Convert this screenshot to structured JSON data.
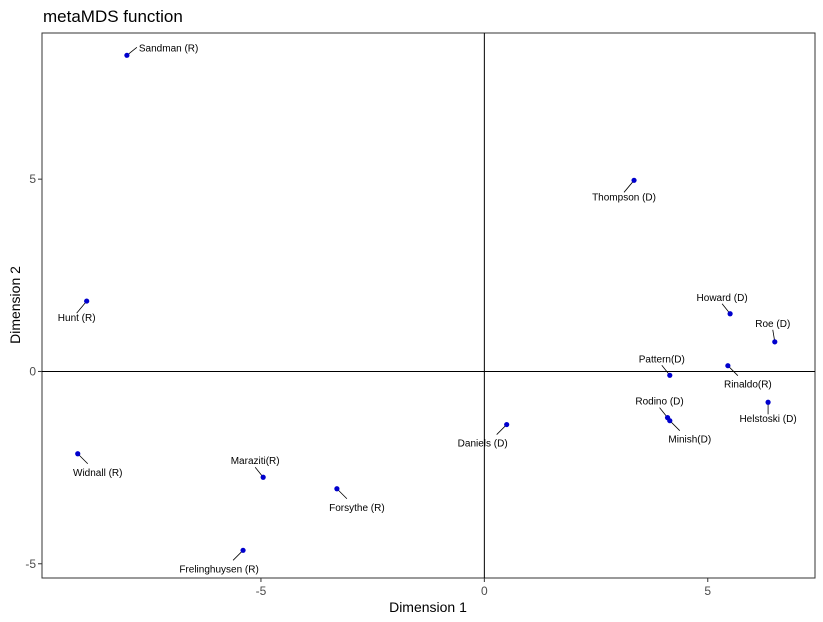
{
  "chart_data": {
    "type": "scatter",
    "title": "metaMDS function",
    "xlabel": "Dimension 1",
    "ylabel": "Dimension 2",
    "xlim": [
      -9.9,
      7.4
    ],
    "ylim": [
      -5.37,
      8.8
    ],
    "xticks": [
      -5,
      0,
      5
    ],
    "yticks": [
      -5,
      0,
      5
    ],
    "reference_lines": {
      "x": 0,
      "y": 0
    },
    "grid": false,
    "point_color": "#0000cd",
    "points": [
      {
        "label": "Sandman (R)",
        "x": -8.0,
        "y": 8.22,
        "label_pos": "right"
      },
      {
        "label": "Thompson (D)",
        "x": 3.35,
        "y": 4.97,
        "label_pos": "left-below"
      },
      {
        "label": "Hunt (R)",
        "x": -8.9,
        "y": 1.83,
        "label_pos": "left-below"
      },
      {
        "label": "Howard (D)",
        "x": 5.5,
        "y": 1.5,
        "label_pos": "above-left"
      },
      {
        "label": "Roe (D)",
        "x": 6.5,
        "y": 0.77,
        "label_pos": "above"
      },
      {
        "label": "Pattern(D)",
        "x": 4.15,
        "y": -0.1,
        "label_pos": "above-left"
      },
      {
        "label": "Rinaldo(R)",
        "x": 5.45,
        "y": 0.15,
        "label_pos": "below-right"
      },
      {
        "label": "Rodino (D)",
        "x": 4.1,
        "y": -1.2,
        "label_pos": "above-left"
      },
      {
        "label": "Minish(D)",
        "x": 4.15,
        "y": -1.28,
        "label_pos": "below-right"
      },
      {
        "label": "Helstoski (D)",
        "x": 6.35,
        "y": -0.8,
        "label_pos": "below"
      },
      {
        "label": "Daniels (D)",
        "x": 0.5,
        "y": -1.38,
        "label_pos": "below-left"
      },
      {
        "label": "Widnall (R)",
        "x": -9.1,
        "y": -2.14,
        "label_pos": "below-right"
      },
      {
        "label": "Maraziti(R)",
        "x": -4.95,
        "y": -2.75,
        "label_pos": "above-left"
      },
      {
        "label": "Forsythe (R)",
        "x": -3.3,
        "y": -3.05,
        "label_pos": "below-right"
      },
      {
        "label": "Frelinghuysen (R)",
        "x": -5.4,
        "y": -4.65,
        "label_pos": "below-left"
      }
    ]
  }
}
